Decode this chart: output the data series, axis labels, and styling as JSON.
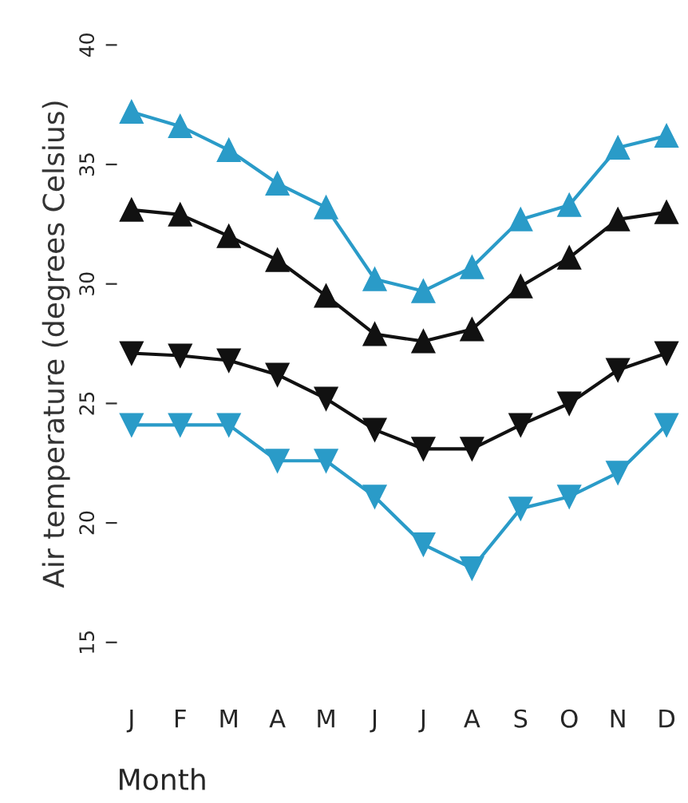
{
  "chart_data": {
    "type": "line",
    "xlabel": "Month",
    "ylabel": "Air temperature (degrees Celsius)",
    "categories": [
      "J",
      "F",
      "M",
      "A",
      "M",
      "J",
      "J",
      "A",
      "S",
      "O",
      "N",
      "D"
    ],
    "ylim": [
      15,
      40
    ],
    "yticks": [
      15,
      20,
      25,
      30,
      35,
      40
    ],
    "grid": false,
    "legend": false,
    "line_style": "solid",
    "series": [
      {
        "color": "#2a9bc8",
        "marker": "triangle",
        "values": [
          37.2,
          36.6,
          35.6,
          34.2,
          33.2,
          30.2,
          29.7,
          30.7,
          32.7,
          33.3,
          35.7,
          36.2
        ]
      },
      {
        "color": "#111111",
        "marker": "triangle",
        "values": [
          33.1,
          32.9,
          32.0,
          31.0,
          29.5,
          27.9,
          27.6,
          28.1,
          29.9,
          31.1,
          32.7,
          33.0
        ]
      },
      {
        "color": "#111111",
        "marker": "triangle_down",
        "values": [
          27.1,
          27.0,
          26.8,
          26.2,
          25.2,
          23.9,
          23.1,
          23.1,
          24.1,
          25.0,
          26.4,
          27.1
        ]
      },
      {
        "color": "#2a9bc8",
        "marker": "triangle_down",
        "values": [
          24.1,
          24.1,
          24.1,
          22.6,
          22.6,
          21.1,
          19.1,
          18.1,
          20.6,
          21.1,
          22.1,
          24.1
        ]
      }
    ]
  }
}
